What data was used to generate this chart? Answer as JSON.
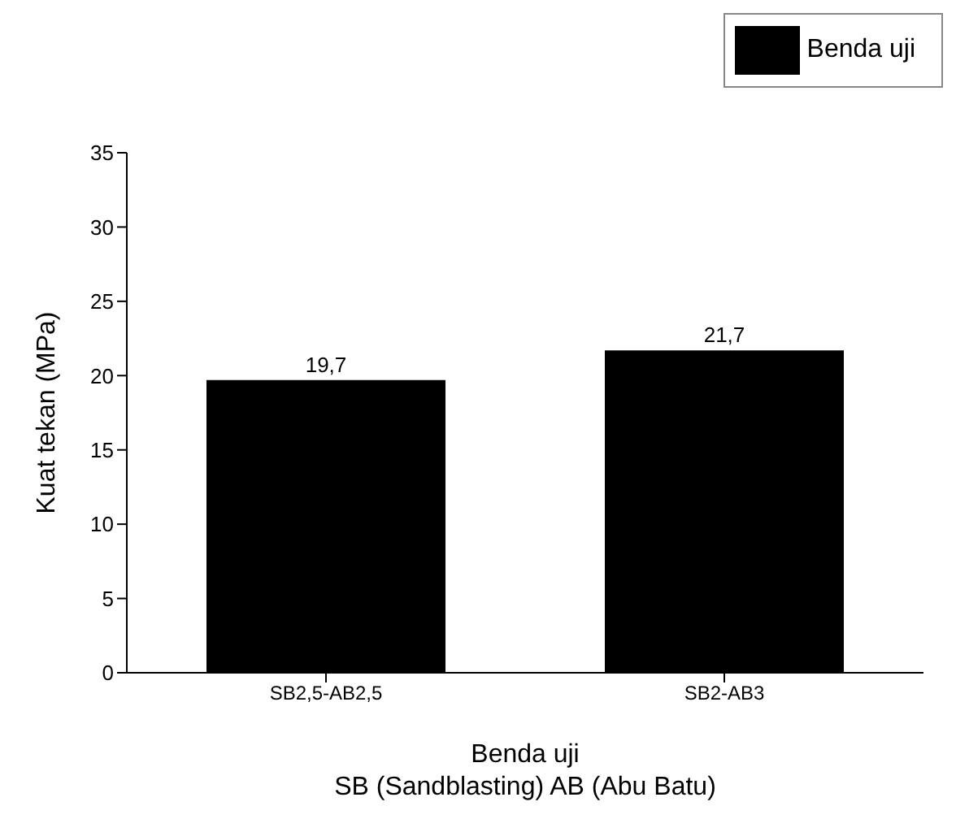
{
  "chart_data": {
    "type": "bar",
    "xlabel": "Benda uji\nSB (Sandblasting) AB (Abu Batu)",
    "ylabel": "Kuat tekan (MPa)",
    "categories": [
      "SB2,5-AB2,5",
      "SB2-AB3"
    ],
    "series": [
      {
        "name": "Benda uji",
        "color": "#000000",
        "values": [
          19.7,
          21.7
        ],
        "value_labels": [
          "19,7",
          "21,7"
        ]
      }
    ],
    "ylim": [
      0,
      35
    ],
    "yticks": [
      0,
      5,
      10,
      15,
      20,
      25,
      30,
      35
    ],
    "grid": false,
    "legend": "top right"
  }
}
